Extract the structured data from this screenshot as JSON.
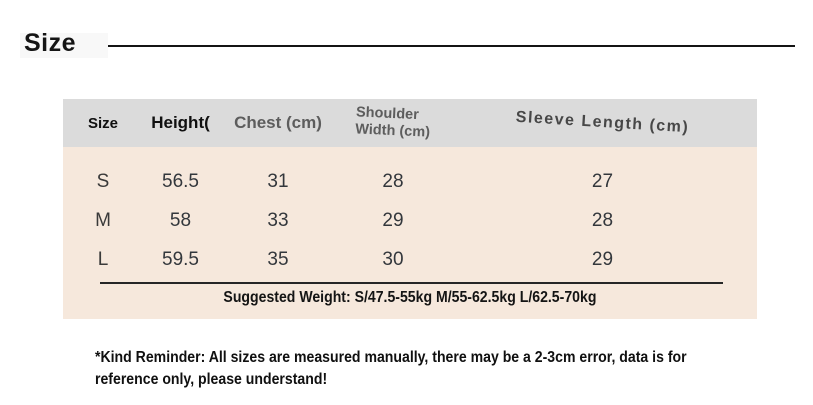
{
  "title": {
    "text": "Size"
  },
  "size_table": {
    "headers": [
      {
        "label": "Size"
      },
      {
        "label": "Height("
      },
      {
        "label": "Chest (cm)"
      },
      {
        "line1": "Shoulder",
        "line2": "Width (cm)"
      },
      {
        "label": "Sleeve Length (cm)"
      }
    ],
    "rows": [
      {
        "cells": [
          "S",
          "56.5",
          "31",
          "28",
          "27"
        ]
      },
      {
        "cells": [
          "M",
          "58",
          "33",
          "29",
          "28"
        ]
      },
      {
        "cells": [
          "L",
          "59.5",
          "35",
          "30",
          "29"
        ]
      }
    ],
    "suggested_weight": "Suggested Weight: S/47.5-55kg M/55-62.5kg L/62.5-70kg"
  },
  "reminder": {
    "line1": "*Kind Reminder: All sizes are measured manually, there may be a 2-3cm error, data is for",
    "line2": "reference only, please understand!"
  },
  "colors": {
    "header_bg": "#dbdbdb",
    "body_bg": "#f6e8dc",
    "rule": "#141414"
  }
}
